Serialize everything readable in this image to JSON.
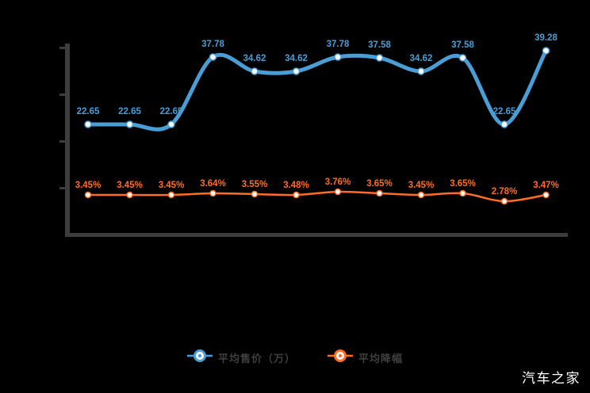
{
  "watermark": "汽车之家",
  "colors": {
    "background": "#000000",
    "axis": "#3d3d3d",
    "blue": "#4a9ed6",
    "orange": "#ff6d26",
    "marker_fill": "#ffffff",
    "legend_text": "#3f3f3f",
    "watermark_text": "#fdfdfd"
  },
  "legend": {
    "items": [
      {
        "label": "平均售价（万）",
        "series": "blue"
      },
      {
        "label": "平均降幅",
        "series": "orange"
      }
    ]
  },
  "chart_data": {
    "type": "line",
    "title": "",
    "xlabel": "",
    "ylabel": "",
    "x_tick_labels_visible": false,
    "y_axis": {
      "tick_count": 5,
      "labels_visible": false,
      "grid": false
    },
    "legend_position": "bottom-center",
    "series": [
      {
        "name": "平均售价（万）",
        "color_key": "blue",
        "unit": "万",
        "label_format": "fixed2",
        "values": [
          22.65,
          22.65,
          22.65,
          37.78,
          34.62,
          34.62,
          37.78,
          37.58,
          34.62,
          37.58,
          22.65,
          39.28
        ]
      },
      {
        "name": "平均降幅",
        "color_key": "orange",
        "unit": "%",
        "label_format": "fixed2_percent",
        "values": [
          3.45,
          3.45,
          3.45,
          3.64,
          3.55,
          3.48,
          3.76,
          3.65,
          3.45,
          3.65,
          2.78,
          3.47
        ]
      }
    ]
  }
}
